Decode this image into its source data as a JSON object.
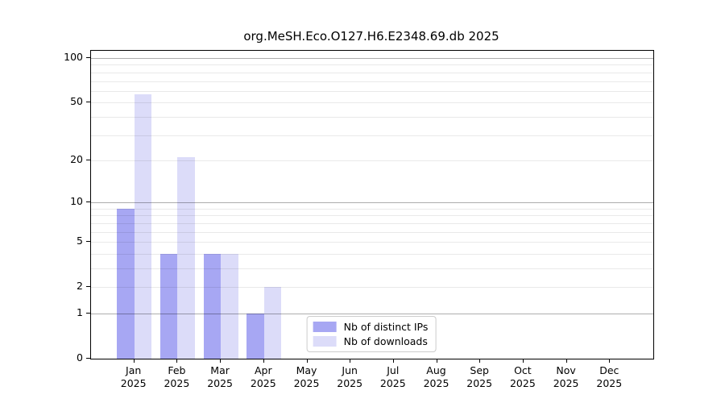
{
  "title": "org.MeSH.Eco.O127.H6.E2348.69.db 2025",
  "chart_data": {
    "type": "bar",
    "title": "org.MeSH.Eco.O127.H6.E2348.69.db 2025",
    "scale": "log10(1+y)",
    "grid": true,
    "legend_position": "lower center",
    "categories": [
      "Jan",
      "Feb",
      "Mar",
      "Apr",
      "May",
      "Jun",
      "Jul",
      "Aug",
      "Sep",
      "Oct",
      "Nov",
      "Dec"
    ],
    "category_year": "2025",
    "series": [
      {
        "name": "Nb of distinct IPs",
        "color": "#a7a7f3",
        "values": [
          9,
          4,
          4,
          1,
          0,
          0,
          0,
          0,
          0,
          0,
          0,
          0
        ]
      },
      {
        "name": "Nb of downloads",
        "color": "#dcdcf9",
        "values": [
          57,
          21,
          4,
          2,
          0,
          0,
          0,
          0,
          0,
          0,
          0,
          0
        ]
      }
    ],
    "xlabel": "",
    "ylabel": "",
    "ylim": [
      0,
      112
    ],
    "y_ticks": [
      0,
      1,
      2,
      5,
      10,
      20,
      50,
      100
    ],
    "minor_gridlines": [
      2,
      3,
      4,
      5,
      6,
      7,
      8,
      9,
      20,
      30,
      40,
      50,
      60,
      70,
      80,
      90
    ],
    "major_gridlines": [
      1,
      10,
      100
    ],
    "colors": {
      "axis": "#000000",
      "minor_grid": "#e9e9e9",
      "major_grid": "#b3b3b3",
      "text": "#000000"
    }
  }
}
